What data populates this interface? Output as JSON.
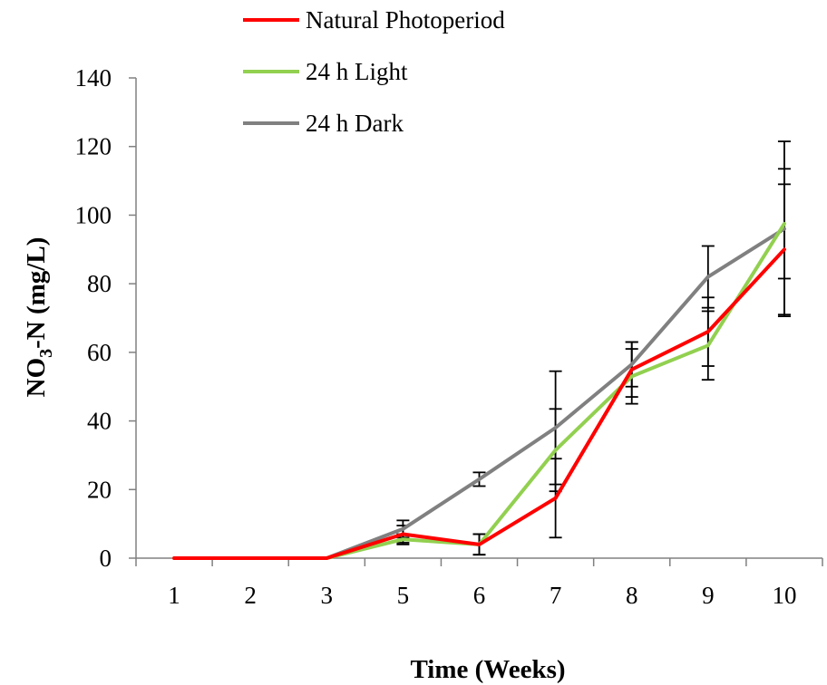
{
  "chart_data": {
    "type": "line",
    "title": "",
    "xlabel": "Time (Weeks)",
    "ylabel": {
      "prefix": "NO",
      "subscript": "3",
      "suffix": "-N (mg/L)"
    },
    "categories": [
      "1",
      "2",
      "3",
      "5",
      "6",
      "7",
      "8",
      "9",
      "10"
    ],
    "ylim": [
      0,
      140
    ],
    "yticks": [
      "0",
      "20",
      "40",
      "60",
      "80",
      "100",
      "120",
      "140"
    ],
    "grid": false,
    "legend_position": "top-center",
    "series": [
      {
        "name": "Natural Photoperiod",
        "color": "#ff0000",
        "values": [
          0,
          0,
          0,
          7,
          4,
          17.5,
          55,
          66,
          90
        ],
        "errors": [
          null,
          null,
          null,
          2.5,
          3,
          11.5,
          8,
          10,
          19
        ]
      },
      {
        "name": "24 h Light",
        "color": "#92d050",
        "values": [
          0,
          0,
          0,
          5.5,
          4,
          31.5,
          53,
          62,
          97.5
        ],
        "errors": [
          null,
          null,
          null,
          1.5,
          3,
          12,
          8,
          10,
          16
        ]
      },
      {
        "name": "24 h Dark",
        "color": "#808080",
        "values": [
          0,
          0,
          0,
          8.5,
          23,
          38,
          56.5,
          82,
          96
        ],
        "errors": [
          null,
          null,
          null,
          2.5,
          2,
          16.5,
          6.5,
          9,
          25.5
        ]
      }
    ]
  }
}
